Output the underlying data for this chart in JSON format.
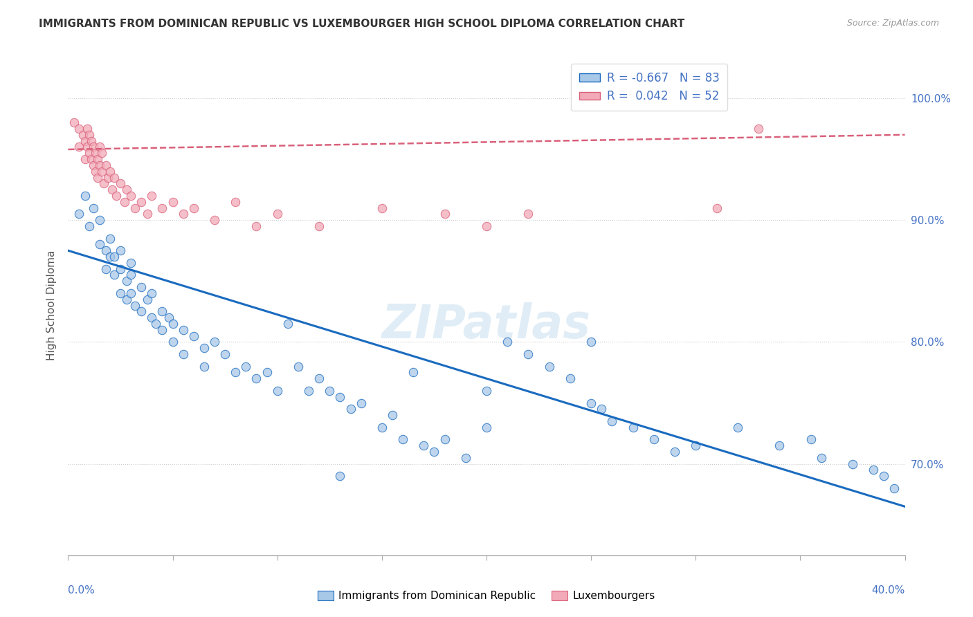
{
  "title": "IMMIGRANTS FROM DOMINICAN REPUBLIC VS LUXEMBOURGER HIGH SCHOOL DIPLOMA CORRELATION CHART",
  "source": "Source: ZipAtlas.com",
  "ylabel": "High School Diploma",
  "y_ticks_right": [
    0.7,
    0.8,
    0.9,
    1.0
  ],
  "xmin": 0.0,
  "xmax": 0.4,
  "ymin": 0.625,
  "ymax": 1.035,
  "blue_R": -0.667,
  "blue_N": 83,
  "pink_R": 0.042,
  "pink_N": 52,
  "blue_color": "#a8c8e8",
  "pink_color": "#f2aab8",
  "blue_line_color": "#1a6bbf",
  "pink_line_color": "#d9607a",
  "legend_label_blue": "Immigrants from Dominican Republic",
  "legend_label_pink": "Luxembourgers",
  "watermark": "ZIPatlas",
  "blue_scatter_x": [
    0.005,
    0.008,
    0.01,
    0.012,
    0.015,
    0.015,
    0.018,
    0.018,
    0.02,
    0.02,
    0.022,
    0.022,
    0.025,
    0.025,
    0.025,
    0.028,
    0.028,
    0.03,
    0.03,
    0.03,
    0.032,
    0.035,
    0.035,
    0.038,
    0.04,
    0.04,
    0.042,
    0.045,
    0.045,
    0.048,
    0.05,
    0.05,
    0.055,
    0.055,
    0.06,
    0.065,
    0.065,
    0.07,
    0.075,
    0.08,
    0.085,
    0.09,
    0.095,
    0.1,
    0.105,
    0.11,
    0.115,
    0.12,
    0.125,
    0.13,
    0.135,
    0.14,
    0.15,
    0.155,
    0.16,
    0.165,
    0.17,
    0.175,
    0.18,
    0.19,
    0.2,
    0.21,
    0.22,
    0.23,
    0.24,
    0.25,
    0.255,
    0.26,
    0.27,
    0.28,
    0.29,
    0.3,
    0.32,
    0.34,
    0.355,
    0.36,
    0.375,
    0.385,
    0.39,
    0.395,
    0.13,
    0.2,
    0.25
  ],
  "blue_scatter_y": [
    0.905,
    0.92,
    0.895,
    0.91,
    0.9,
    0.88,
    0.875,
    0.86,
    0.87,
    0.885,
    0.855,
    0.87,
    0.86,
    0.84,
    0.875,
    0.835,
    0.85,
    0.84,
    0.855,
    0.865,
    0.83,
    0.845,
    0.825,
    0.835,
    0.82,
    0.84,
    0.815,
    0.825,
    0.81,
    0.82,
    0.815,
    0.8,
    0.81,
    0.79,
    0.805,
    0.795,
    0.78,
    0.8,
    0.79,
    0.775,
    0.78,
    0.77,
    0.775,
    0.76,
    0.815,
    0.78,
    0.76,
    0.77,
    0.76,
    0.755,
    0.745,
    0.75,
    0.73,
    0.74,
    0.72,
    0.775,
    0.715,
    0.71,
    0.72,
    0.705,
    0.76,
    0.8,
    0.79,
    0.78,
    0.77,
    0.75,
    0.745,
    0.735,
    0.73,
    0.72,
    0.71,
    0.715,
    0.73,
    0.715,
    0.72,
    0.705,
    0.7,
    0.695,
    0.69,
    0.68,
    0.69,
    0.73,
    0.8
  ],
  "pink_scatter_x": [
    0.003,
    0.005,
    0.005,
    0.007,
    0.008,
    0.008,
    0.009,
    0.009,
    0.01,
    0.01,
    0.011,
    0.011,
    0.012,
    0.012,
    0.013,
    0.013,
    0.014,
    0.014,
    0.015,
    0.015,
    0.016,
    0.016,
    0.017,
    0.018,
    0.019,
    0.02,
    0.021,
    0.022,
    0.023,
    0.025,
    0.027,
    0.028,
    0.03,
    0.032,
    0.035,
    0.038,
    0.04,
    0.045,
    0.05,
    0.055,
    0.06,
    0.07,
    0.08,
    0.09,
    0.1,
    0.12,
    0.15,
    0.18,
    0.2,
    0.22,
    0.31,
    0.33
  ],
  "pink_scatter_y": [
    0.98,
    0.975,
    0.96,
    0.97,
    0.965,
    0.95,
    0.96,
    0.975,
    0.955,
    0.97,
    0.95,
    0.965,
    0.945,
    0.96,
    0.955,
    0.94,
    0.95,
    0.935,
    0.945,
    0.96,
    0.94,
    0.955,
    0.93,
    0.945,
    0.935,
    0.94,
    0.925,
    0.935,
    0.92,
    0.93,
    0.915,
    0.925,
    0.92,
    0.91,
    0.915,
    0.905,
    0.92,
    0.91,
    0.915,
    0.905,
    0.91,
    0.9,
    0.915,
    0.895,
    0.905,
    0.895,
    0.91,
    0.905,
    0.895,
    0.905,
    0.91,
    0.975
  ],
  "blue_trendline_x": [
    0.0,
    0.4
  ],
  "blue_trendline_y": [
    0.875,
    0.665
  ],
  "pink_trendline_x": [
    0.0,
    0.4
  ],
  "pink_trendline_y": [
    0.958,
    0.97
  ]
}
